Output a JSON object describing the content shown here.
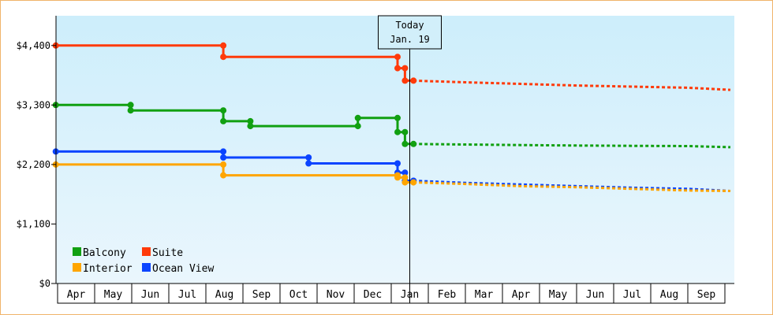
{
  "chart_data": {
    "type": "line",
    "title": "",
    "xlabel": "",
    "ylabel": "",
    "currency_prefix": "$",
    "ylim": [
      0,
      4950
    ],
    "yticks": [
      0,
      1100,
      2200,
      3300,
      4400
    ],
    "ytick_labels": [
      "$0",
      "$1,100",
      "$2,200",
      "$3,300",
      "$4,400"
    ],
    "grid": false,
    "background_gradient": [
      "#cdeefb",
      "#eaf6fd"
    ],
    "x_months": [
      "Apr",
      "May",
      "Jun",
      "Jul",
      "Aug",
      "Sep",
      "Oct",
      "Nov",
      "Dec",
      "Jan",
      "Feb",
      "Mar",
      "Apr",
      "May",
      "Jun",
      "Jul",
      "Aug",
      "Sep"
    ],
    "today": {
      "line1": "Today",
      "line2": "Jan. 19",
      "month_position": 9.5
    },
    "legend": {
      "placement": "bottom-left",
      "items": [
        {
          "label": "Balcony",
          "color": "#11a011"
        },
        {
          "label": "Suite",
          "color": "#ff3a0a"
        },
        {
          "label": "Interior",
          "color": "#ffa500"
        },
        {
          "label": "Ocean View",
          "color": "#0b44ff"
        }
      ]
    },
    "series": [
      {
        "name": "Suite",
        "color": "#ff3a0a",
        "history": [
          [
            -0.05,
            4400
          ],
          [
            4.47,
            4400
          ],
          [
            4.47,
            4190
          ],
          [
            9.17,
            4190
          ],
          [
            9.17,
            3980
          ],
          [
            9.37,
            3980
          ],
          [
            9.37,
            3750
          ],
          [
            9.6,
            3750
          ]
        ],
        "forecast": [
          [
            9.6,
            3750
          ],
          [
            11.0,
            3720
          ],
          [
            12.5,
            3690
          ],
          [
            14.0,
            3660
          ],
          [
            15.5,
            3640
          ],
          [
            17.0,
            3620
          ],
          [
            18.15,
            3580
          ]
        ]
      },
      {
        "name": "Balcony",
        "color": "#11a011",
        "history": [
          [
            -0.05,
            3300
          ],
          [
            1.97,
            3300
          ],
          [
            1.97,
            3200
          ],
          [
            4.47,
            3200
          ],
          [
            4.47,
            3000
          ],
          [
            5.2,
            3000
          ],
          [
            5.2,
            2910
          ],
          [
            8.1,
            2910
          ],
          [
            8.1,
            3060
          ],
          [
            9.17,
            3060
          ],
          [
            9.17,
            2800
          ],
          [
            9.37,
            2800
          ],
          [
            9.37,
            2580
          ],
          [
            9.6,
            2580
          ]
        ],
        "forecast": [
          [
            9.6,
            2580
          ],
          [
            11.0,
            2570
          ],
          [
            12.5,
            2560
          ],
          [
            14.0,
            2550
          ],
          [
            15.5,
            2545
          ],
          [
            17.0,
            2540
          ],
          [
            18.15,
            2520
          ]
        ]
      },
      {
        "name": "Ocean View",
        "color": "#0b44ff",
        "history": [
          [
            -0.05,
            2440
          ],
          [
            4.47,
            2440
          ],
          [
            4.47,
            2330
          ],
          [
            6.77,
            2330
          ],
          [
            6.77,
            2220
          ],
          [
            9.17,
            2220
          ],
          [
            9.17,
            2050
          ],
          [
            9.37,
            2050
          ],
          [
            9.37,
            1900
          ],
          [
            9.6,
            1900
          ]
        ],
        "forecast": [
          [
            9.6,
            1900
          ],
          [
            11.0,
            1860
          ],
          [
            12.5,
            1830
          ],
          [
            14.0,
            1800
          ],
          [
            15.5,
            1770
          ],
          [
            17.0,
            1750
          ],
          [
            18.15,
            1710
          ]
        ]
      },
      {
        "name": "Interior",
        "color": "#ffa500",
        "history": [
          [
            -0.05,
            2200
          ],
          [
            4.47,
            2200
          ],
          [
            4.47,
            2000
          ],
          [
            9.17,
            2000
          ],
          [
            9.17,
            1960
          ],
          [
            9.37,
            1960
          ],
          [
            9.37,
            1870
          ],
          [
            9.6,
            1870
          ]
        ],
        "forecast": [
          [
            9.6,
            1870
          ],
          [
            11.0,
            1840
          ],
          [
            12.5,
            1800
          ],
          [
            14.0,
            1780
          ],
          [
            15.5,
            1750
          ],
          [
            17.0,
            1720
          ],
          [
            18.15,
            1710
          ]
        ]
      }
    ]
  }
}
